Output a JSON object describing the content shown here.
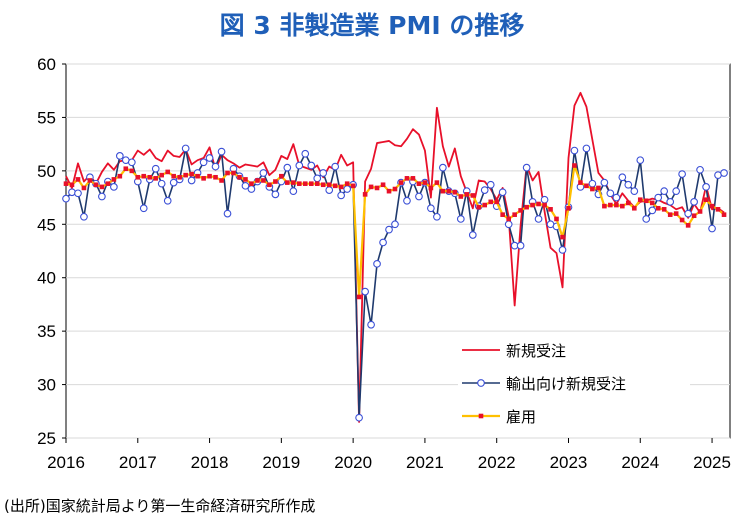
{
  "title": "図 3  非製造業 PMI の推移",
  "source": "(出所)国家統計局より第一生命経済研究所作成",
  "colors": {
    "title": "#1f5fb8",
    "new_orders": "#e8102a",
    "export_new_orders": "#1f3a6e",
    "export_marker": "#3a4fd6",
    "employment": "#ffc000",
    "employment_marker": "#e8102a"
  },
  "chart_data": {
    "type": "line",
    "title": "図 3  非製造業 PMI の推移",
    "ylim": [
      25,
      60
    ],
    "yticks": [
      25,
      30,
      35,
      40,
      45,
      50,
      55,
      60
    ],
    "xlim": [
      2016.0,
      2025.25
    ],
    "xticks": [
      "2016",
      "2017",
      "2018",
      "2019",
      "2020",
      "2021",
      "2022",
      "2023",
      "2024",
      "2025"
    ],
    "legend_position": "bottom-right",
    "series": [
      {
        "name": "新規受注",
        "key": "new_orders",
        "marker": "none",
        "x": [
          2016.0,
          2016.083,
          2016.167,
          2016.25,
          2016.333,
          2016.417,
          2016.5,
          2016.583,
          2016.667,
          2016.75,
          2016.833,
          2016.917,
          2017.0,
          2017.083,
          2017.167,
          2017.25,
          2017.333,
          2017.417,
          2017.5,
          2017.583,
          2017.667,
          2017.75,
          2017.833,
          2017.917,
          2018.0,
          2018.083,
          2018.167,
          2018.25,
          2018.333,
          2018.417,
          2018.5,
          2018.583,
          2018.667,
          2018.75,
          2018.833,
          2018.917,
          2019.0,
          2019.083,
          2019.167,
          2019.25,
          2019.333,
          2019.417,
          2019.5,
          2019.583,
          2019.667,
          2019.75,
          2019.833,
          2019.917,
          2020.0,
          2020.083,
          2020.167,
          2020.25,
          2020.333,
          2020.417,
          2020.5,
          2020.583,
          2020.667,
          2020.75,
          2020.833,
          2020.917,
          2021.0,
          2021.083,
          2021.167,
          2021.25,
          2021.333,
          2021.417,
          2021.5,
          2021.583,
          2021.667,
          2021.75,
          2021.833,
          2021.917,
          2022.0,
          2022.083,
          2022.167,
          2022.25,
          2022.333,
          2022.417,
          2022.5,
          2022.583,
          2022.667,
          2022.75,
          2022.833,
          2022.917,
          2023.0,
          2023.083,
          2023.167,
          2023.25,
          2023.333,
          2023.417,
          2023.5,
          2023.583,
          2023.667,
          2023.75,
          2023.833,
          2023.917,
          2024.0,
          2024.083,
          2024.167,
          2024.25,
          2024.333,
          2024.417,
          2024.5,
          2024.583,
          2024.667,
          2024.75,
          2024.833,
          2024.917,
          2025.0,
          2025.083,
          2025.167
        ],
        "values": [
          49.5,
          48.4,
          50.7,
          49.0,
          49.6,
          48.8,
          49.9,
          50.7,
          50.1,
          50.9,
          51.0,
          51.0,
          51.9,
          51.5,
          52.0,
          51.2,
          50.9,
          51.9,
          51.4,
          51.3,
          52.0,
          50.6,
          51.0,
          51.2,
          52.2,
          50.1,
          51.5,
          51.0,
          50.7,
          50.3,
          50.6,
          50.5,
          50.4,
          50.8,
          49.6,
          50.1,
          51.4,
          51.1,
          52.5,
          50.5,
          50.3,
          50.1,
          50.5,
          49.4,
          50.4,
          50.1,
          51.5,
          50.5,
          50.8,
          26.5,
          49.0,
          50.2,
          52.6,
          52.7,
          52.8,
          52.4,
          52.3,
          53.0,
          53.9,
          53.4,
          51.9,
          47.5,
          55.9,
          52.3,
          50.4,
          52.1,
          49.5,
          48.0,
          46.5,
          49.1,
          49.0,
          48.3,
          47.3,
          48.4,
          45.7,
          37.4,
          44.9,
          50.5,
          49.1,
          49.9,
          46.2,
          42.8,
          42.3,
          39.1,
          51.2,
          56.1,
          57.3,
          56.0,
          52.9,
          49.8,
          49.1,
          47.8,
          46.9,
          47.9,
          47.2,
          46.6,
          47.1,
          47.2,
          47.4,
          47.3,
          47.0,
          46.8,
          46.4,
          46.6,
          45.6,
          46.9,
          46.1,
          48.6,
          46.4,
          46.5,
          46.1
        ]
      },
      {
        "name": "輸出向け新規受注",
        "key": "export_new_orders",
        "marker": "circle",
        "x": [
          2016.0,
          2016.083,
          2016.167,
          2016.25,
          2016.333,
          2016.417,
          2016.5,
          2016.583,
          2016.667,
          2016.75,
          2016.833,
          2016.917,
          2017.0,
          2017.083,
          2017.167,
          2017.25,
          2017.333,
          2017.417,
          2017.5,
          2017.583,
          2017.667,
          2017.75,
          2017.833,
          2017.917,
          2018.0,
          2018.083,
          2018.167,
          2018.25,
          2018.333,
          2018.417,
          2018.5,
          2018.583,
          2018.667,
          2018.75,
          2018.833,
          2018.917,
          2019.0,
          2019.083,
          2019.167,
          2019.25,
          2019.333,
          2019.417,
          2019.5,
          2019.583,
          2019.667,
          2019.75,
          2019.833,
          2019.917,
          2020.0,
          2020.083,
          2020.167,
          2020.25,
          2020.333,
          2020.417,
          2020.5,
          2020.583,
          2020.667,
          2020.75,
          2020.833,
          2020.917,
          2021.0,
          2021.083,
          2021.167,
          2021.25,
          2021.333,
          2021.417,
          2021.5,
          2021.583,
          2021.667,
          2021.75,
          2021.833,
          2021.917,
          2022.0,
          2022.083,
          2022.167,
          2022.25,
          2022.333,
          2022.417,
          2022.5,
          2022.583,
          2022.667,
          2022.75,
          2022.833,
          2022.917,
          2023.0,
          2023.083,
          2023.167,
          2023.25,
          2023.333,
          2023.417,
          2023.5,
          2023.583,
          2023.667,
          2023.75,
          2023.833,
          2023.917,
          2024.0,
          2024.083,
          2024.167,
          2024.25,
          2024.333,
          2024.417,
          2024.5,
          2024.583,
          2024.667,
          2024.75,
          2024.833,
          2024.917,
          2025.0,
          2025.083,
          2025.167
        ],
        "values": [
          47.4,
          48.0,
          47.9,
          45.7,
          49.4,
          48.8,
          47.6,
          49.0,
          48.5,
          51.4,
          51.0,
          50.8,
          49.0,
          46.5,
          49.2,
          50.2,
          48.8,
          47.2,
          48.9,
          49.2,
          52.1,
          49.1,
          49.8,
          50.8,
          51.2,
          50.4,
          51.8,
          46.0,
          50.2,
          49.5,
          48.6,
          48.3,
          49.0,
          49.8,
          48.5,
          47.8,
          49.0,
          50.3,
          48.1,
          50.5,
          51.6,
          50.5,
          49.3,
          49.8,
          48.2,
          50.4,
          47.7,
          48.3,
          48.7,
          26.9,
          38.7,
          35.6,
          41.3,
          43.3,
          44.5,
          45.0,
          48.9,
          47.2,
          49.0,
          47.6,
          48.9,
          46.5,
          45.7,
          50.3,
          48.1,
          47.9,
          45.5,
          48.1,
          44.0,
          46.7,
          48.2,
          48.7,
          46.7,
          48.0,
          45.0,
          43.0,
          43.0,
          50.3,
          47.1,
          45.5,
          47.3,
          45.0,
          44.8,
          42.6,
          46.6,
          51.9,
          48.5,
          52.1,
          48.8,
          47.8,
          48.9,
          47.9,
          47.5,
          49.4,
          48.7,
          48.1,
          51.0,
          45.5,
          46.3,
          47.5,
          48.1,
          47.1,
          48.1,
          49.7,
          46.0,
          47.1,
          50.1,
          48.5,
          44.6,
          49.6,
          49.8
        ]
      },
      {
        "name": "雇用",
        "key": "employment",
        "marker": "square",
        "x": [
          2016.0,
          2016.083,
          2016.167,
          2016.25,
          2016.333,
          2016.417,
          2016.5,
          2016.583,
          2016.667,
          2016.75,
          2016.833,
          2016.917,
          2017.0,
          2017.083,
          2017.167,
          2017.25,
          2017.333,
          2017.417,
          2017.5,
          2017.583,
          2017.667,
          2017.75,
          2017.833,
          2017.917,
          2018.0,
          2018.083,
          2018.167,
          2018.25,
          2018.333,
          2018.417,
          2018.5,
          2018.583,
          2018.667,
          2018.75,
          2018.833,
          2018.917,
          2019.0,
          2019.083,
          2019.167,
          2019.25,
          2019.333,
          2019.417,
          2019.5,
          2019.583,
          2019.667,
          2019.75,
          2019.833,
          2019.917,
          2020.0,
          2020.083,
          2020.167,
          2020.25,
          2020.333,
          2020.417,
          2020.5,
          2020.583,
          2020.667,
          2020.75,
          2020.833,
          2020.917,
          2021.0,
          2021.083,
          2021.167,
          2021.25,
          2021.333,
          2021.417,
          2021.5,
          2021.583,
          2021.667,
          2021.75,
          2021.833,
          2021.917,
          2022.0,
          2022.083,
          2022.167,
          2022.25,
          2022.333,
          2022.417,
          2022.5,
          2022.583,
          2022.667,
          2022.75,
          2022.833,
          2022.917,
          2023.0,
          2023.083,
          2023.167,
          2023.25,
          2023.333,
          2023.417,
          2023.5,
          2023.583,
          2023.667,
          2023.75,
          2023.833,
          2023.917,
          2024.0,
          2024.083,
          2024.167,
          2024.25,
          2024.333,
          2024.417,
          2024.5,
          2024.583,
          2024.667,
          2024.75,
          2024.833,
          2024.917,
          2025.0,
          2025.083,
          2025.167
        ],
        "values": [
          48.8,
          48.7,
          49.2,
          48.4,
          49.1,
          48.7,
          48.5,
          48.8,
          49.2,
          49.5,
          50.2,
          50.0,
          49.4,
          49.5,
          49.4,
          49.3,
          49.6,
          49.9,
          49.5,
          49.4,
          49.6,
          49.7,
          49.5,
          49.3,
          49.5,
          49.4,
          49.1,
          49.8,
          49.8,
          49.4,
          49.2,
          48.8,
          49.1,
          49.1,
          48.7,
          49.0,
          49.5,
          48.9,
          48.9,
          48.8,
          48.8,
          48.8,
          48.8,
          48.7,
          48.7,
          48.6,
          48.5,
          48.8,
          48.6,
          38.2,
          47.8,
          48.5,
          48.4,
          48.7,
          48.1,
          48.3,
          48.9,
          49.3,
          49.3,
          48.8,
          48.9,
          48.4,
          48.9,
          48.1,
          48.1,
          48.0,
          47.6,
          47.8,
          47.7,
          46.6,
          46.8,
          47.1,
          47.1,
          45.9,
          45.5,
          45.9,
          46.3,
          46.6,
          46.8,
          46.9,
          46.8,
          46.4,
          45.5,
          43.8,
          46.5,
          50.5,
          48.9,
          48.6,
          48.3,
          48.4,
          46.7,
          46.8,
          46.8,
          46.7,
          47.0,
          46.5,
          47.3,
          47.2,
          47.0,
          46.5,
          46.4,
          45.9,
          46.0,
          45.4,
          44.9,
          45.8,
          46.2,
          47.3,
          46.7,
          46.4,
          45.9
        ]
      }
    ]
  }
}
